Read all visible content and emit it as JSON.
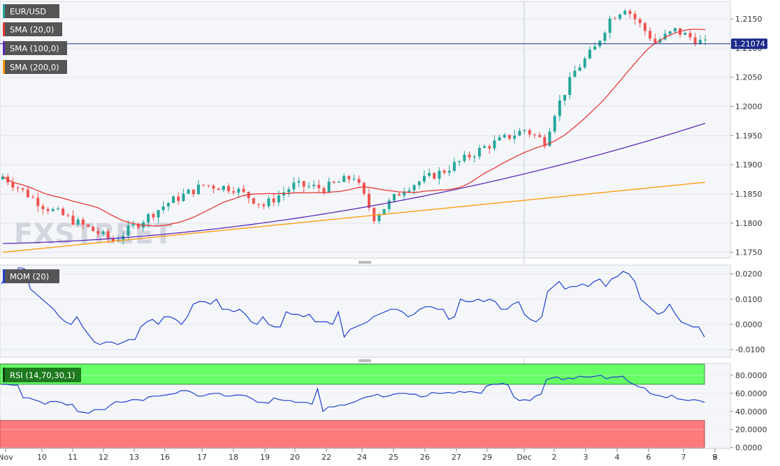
{
  "chart_data": [
    {
      "type": "candlestick",
      "panel": "main",
      "title": "EUR/USD",
      "series": [
        {
          "name": "SMA (20,0)",
          "color": "#e53935"
        },
        {
          "name": "SMA (100,0)",
          "color": "#5b2ab8"
        },
        {
          "name": "SMA (200,0)",
          "color": "#ff9800"
        }
      ],
      "current_price": "1.21074",
      "ylim": [
        1.174,
        1.218
      ],
      "yticks": [
        "1.2150",
        "1.2100",
        "1.2050",
        "1.2000",
        "1.1950",
        "1.1900",
        "1.1850",
        "1.1800",
        "1.1750"
      ],
      "watermark": "FXSTREET",
      "grid": true,
      "legend_position": "top-left"
    },
    {
      "type": "line",
      "panel": "momentum",
      "title": "MOM (20)",
      "ylim": [
        -0.013,
        0.0235
      ],
      "yticks": [
        "0.0200",
        "0.0100",
        "0.0000",
        "-0.0100"
      ],
      "series": [
        {
          "name": "MOM (20)",
          "color": "#1f3fcf",
          "values": [
            0.016,
            0.02,
            0.018,
            0.0225,
            0.022,
            0.014,
            0.012,
            0.01,
            0.008,
            0.006,
            0.003,
            0.001,
            0.0,
            0.003,
            -0.001,
            -0.004,
            -0.007,
            -0.008,
            -0.007,
            -0.007,
            -0.008,
            -0.007,
            -0.006,
            -0.006,
            -0.001,
            0.001,
            0.002,
            0.0,
            0.003,
            0.003,
            0.002,
            0.0,
            0.003,
            0.008,
            0.009,
            0.009,
            0.008,
            0.01,
            0.006,
            0.006,
            0.005,
            0.006,
            0.004,
            0.001,
            0.0,
            0.003,
            0.0,
            -0.001,
            -0.001,
            0.005,
            0.004,
            0.004,
            0.003,
            0.004,
            0.001,
            0.001,
            0.001,
            0.0,
            0.005,
            -0.005,
            -0.002,
            -0.001,
            0.0,
            0.001,
            0.003,
            0.004,
            0.005,
            0.006,
            0.006,
            0.005,
            0.003,
            0.004,
            0.006,
            0.007,
            0.007,
            0.006,
            0.006,
            0.002,
            0.003,
            0.01,
            0.009,
            0.009,
            0.01,
            0.009,
            0.01,
            0.009,
            0.006,
            0.006,
            0.008,
            0.009,
            0.004,
            0.002,
            0.001,
            0.003,
            0.013,
            0.015,
            0.017,
            0.014,
            0.015,
            0.015,
            0.016,
            0.015,
            0.017,
            0.018,
            0.015,
            0.018,
            0.019,
            0.021,
            0.02,
            0.017,
            0.01,
            0.008,
            0.006,
            0.004,
            0.005,
            0.008,
            0.004,
            0.001,
            0.0,
            -0.001,
            -0.001,
            -0.005
          ]
        }
      ],
      "grid": true
    },
    {
      "type": "line",
      "panel": "rsi",
      "title": "RSI (14,70,30,1)",
      "ylim": [
        -1,
        93
      ],
      "yticks": [
        "80.0000",
        "60.0000",
        "40.0000",
        "20.0000",
        "0.0000"
      ],
      "overbought": 70,
      "oversold": 30,
      "zone_colors": {
        "overbought": "#66ff66",
        "oversold": "#ff7a7a"
      },
      "series": [
        {
          "name": "RSI (14,70,30,1)",
          "color": "#1f3fcf",
          "values": [
            70,
            70,
            69,
            69,
            55,
            55,
            53,
            51,
            48,
            51,
            51,
            50,
            47,
            48,
            40,
            39,
            38,
            42,
            42,
            42,
            47,
            51,
            50,
            51,
            53,
            53,
            52,
            56,
            57,
            57,
            58,
            59,
            60,
            63,
            63,
            61,
            57,
            57,
            59,
            60,
            60,
            57,
            57,
            58,
            58,
            57,
            54,
            50,
            50,
            49,
            55,
            53,
            52,
            52,
            50,
            50,
            50,
            48,
            65,
            40,
            45,
            45,
            47,
            47,
            49,
            51,
            54,
            56,
            57,
            59,
            56,
            57,
            59,
            60,
            60,
            59,
            59,
            56,
            57,
            61,
            60,
            60,
            61,
            60,
            62,
            61,
            62,
            61,
            60,
            68,
            70,
            70,
            71,
            69,
            56,
            52,
            53,
            52,
            57,
            59,
            75,
            77,
            78,
            75,
            77,
            76,
            79,
            78,
            78,
            79,
            80,
            76,
            78,
            78,
            79,
            73,
            70,
            67,
            66,
            60,
            58,
            57,
            55,
            58,
            54,
            53,
            52,
            53,
            52,
            50
          ]
        }
      ],
      "grid": true
    }
  ],
  "x_axis": {
    "labels": [
      "Nov",
      "10",
      "11",
      "12",
      "13",
      "16",
      "17",
      "18",
      "19",
      "20",
      "22",
      "24",
      "25",
      "26",
      "27",
      "29",
      "Dec",
      "2",
      "3",
      "4",
      "6",
      "7",
      "8",
      "9"
    ]
  }
}
